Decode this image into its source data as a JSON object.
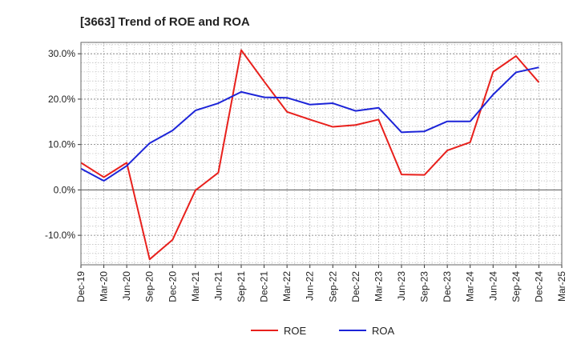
{
  "chart_data": {
    "type": "line",
    "title": "[3663]  Trend of ROE and ROA",
    "x": [
      "Dec-19",
      "Mar-20",
      "Jun-20",
      "Sep-20",
      "Dec-20",
      "Mar-21",
      "Jun-21",
      "Sep-21",
      "Dec-21",
      "Mar-22",
      "Jun-22",
      "Sep-22",
      "Dec-22",
      "Mar-23",
      "Jun-23",
      "Sep-23",
      "Dec-23",
      "Mar-24",
      "Jun-24",
      "Sep-24",
      "Dec-24",
      "Mar-25"
    ],
    "ylim": [
      -16.5,
      32.5
    ],
    "yticks": [
      -10,
      0,
      10,
      20,
      30
    ],
    "ytick_labels": [
      "-10.0%",
      "0.0%",
      "10.0%",
      "20.0%",
      "30.0%"
    ],
    "grid": true,
    "legend_position": "bottom-center",
    "series": [
      {
        "name": "ROE",
        "color": "#e8201c",
        "values": [
          6.0,
          2.8,
          6.0,
          -15.3,
          -11.0,
          -0.1,
          3.8,
          30.8,
          23.9,
          17.2,
          15.5,
          13.9,
          14.3,
          15.5,
          3.4,
          3.3,
          8.7,
          10.5,
          26.0,
          29.5,
          23.7,
          null
        ]
      },
      {
        "name": "ROA",
        "color": "#1c24d8",
        "values": [
          4.7,
          2.0,
          5.3,
          10.3,
          13.1,
          17.5,
          19.1,
          21.6,
          20.4,
          20.3,
          18.8,
          19.1,
          17.4,
          18.1,
          12.7,
          12.9,
          15.1,
          15.1,
          21.0,
          25.9,
          27.0,
          null
        ]
      }
    ]
  }
}
